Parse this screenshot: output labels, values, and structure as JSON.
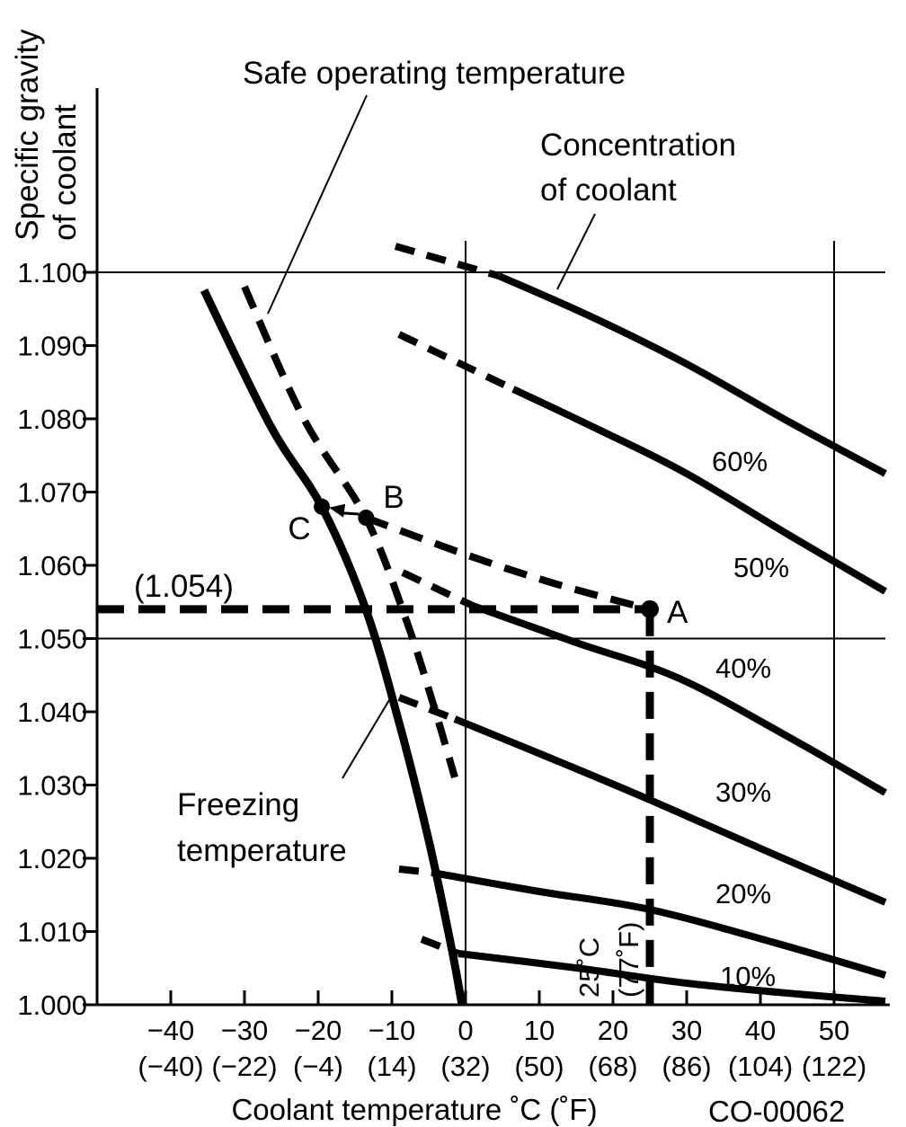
{
  "figure_code": "CO-00062",
  "titles": {
    "y_axis_line1": "Specific gravity",
    "y_axis_line2": "of coolant",
    "safe_operating": "Safe operating temperature",
    "concentration_line1": "Concentration",
    "concentration_line2": "of coolant",
    "freezing_line1": "Freezing",
    "freezing_line2": "temperature",
    "x_axis_title": "Coolant temperature ˚C (˚F)"
  },
  "example": {
    "gravity_callout": "(1.054)",
    "point_a": "A",
    "point_b": "B",
    "point_c": "C",
    "temp_label_c": "25˚C",
    "temp_label_f": "(77˚F)",
    "measured_gravity": 1.054,
    "measured_temp_c": 25
  },
  "y_axis": {
    "ticks": [
      {
        "label": "1.100",
        "value": 1.1
      },
      {
        "label": "1.090",
        "value": 1.09
      },
      {
        "label": "1.080",
        "value": 1.08
      },
      {
        "label": "1.070",
        "value": 1.07
      },
      {
        "label": "1.060",
        "value": 1.06
      },
      {
        "label": "1.050",
        "value": 1.05
      },
      {
        "label": "1.040",
        "value": 1.04
      },
      {
        "label": "1.030",
        "value": 1.03
      },
      {
        "label": "1.020",
        "value": 1.02
      },
      {
        "label": "1.010",
        "value": 1.01
      },
      {
        "label": "1.000",
        "value": 1.0
      }
    ]
  },
  "x_axis": {
    "ticks": [
      {
        "c": "−40",
        "f": "(−40)",
        "value": -40
      },
      {
        "c": "−30",
        "f": "(−22)",
        "value": -30
      },
      {
        "c": "−20",
        "f": "(−4)",
        "value": -20
      },
      {
        "c": "−10",
        "f": "(14)",
        "value": -10
      },
      {
        "c": "0",
        "f": "(32)",
        "value": 0
      },
      {
        "c": "10",
        "f": "(50)",
        "value": 10
      },
      {
        "c": "20",
        "f": "(68)",
        "value": 20
      },
      {
        "c": "30",
        "f": "(86)",
        "value": 30
      },
      {
        "c": "40",
        "f": "(104)",
        "value": 40
      },
      {
        "c": "50",
        "f": "(122)",
        "value": 50
      }
    ]
  },
  "chart_data": {
    "type": "line",
    "title": "",
    "xlabel": "Coolant temperature ˚C (˚F)",
    "ylabel": "Specific gravity of coolant",
    "x_range_c": [
      -49,
      57
    ],
    "y_range": [
      1.0,
      1.105
    ],
    "grid": "reference lines only",
    "reference_lines": {
      "horizontal_gravity": [
        1.1,
        1.05
      ],
      "vertical_temp_c": [
        0,
        50
      ]
    },
    "series": [
      {
        "label": "60%",
        "concentration_pct": 60,
        "dashed": [
          [
            -9.5,
            1.1035
          ],
          [
            4.5,
            1.0995
          ]
        ],
        "solid": [
          [
            4.5,
            1.0995
          ],
          [
            17,
            1.094
          ],
          [
            30,
            1.0875
          ],
          [
            44,
            1.0795
          ],
          [
            57,
            1.0725
          ]
        ]
      },
      {
        "label": "50%",
        "concentration_pct": 50,
        "dashed": [
          [
            -9.0,
            1.0915
          ],
          [
            6.5,
            1.084
          ]
        ],
        "solid": [
          [
            6.5,
            1.084
          ],
          [
            18,
            1.0785
          ],
          [
            30,
            1.0725
          ],
          [
            44,
            1.064
          ],
          [
            57,
            1.0565
          ]
        ]
      },
      {
        "label": "40%",
        "concentration_pct": 40,
        "dashed": [
          [
            -8.5,
            1.059
          ],
          [
            1.0,
            1.0545
          ]
        ],
        "solid": [
          [
            1.0,
            1.0545
          ],
          [
            15,
            1.0495
          ],
          [
            29,
            1.0445
          ],
          [
            44,
            1.0365
          ],
          [
            57,
            1.029
          ]
        ]
      },
      {
        "label": "30%",
        "concentration_pct": 30,
        "dashed": [
          [
            -9.0,
            1.042
          ],
          [
            -1.5,
            1.039
          ]
        ],
        "solid": [
          [
            -1.5,
            1.039
          ],
          [
            12,
            1.0335
          ],
          [
            25,
            1.028
          ],
          [
            42,
            1.0205
          ],
          [
            57,
            1.014
          ]
        ]
      },
      {
        "label": "20%",
        "concentration_pct": 20,
        "dashed": [
          [
            -9.0,
            1.0185
          ],
          [
            -4.5,
            1.018
          ]
        ],
        "solid": [
          [
            -4.5,
            1.018
          ],
          [
            10,
            1.0155
          ],
          [
            25,
            1.013
          ],
          [
            42,
            1.0085
          ],
          [
            57,
            1.004
          ]
        ]
      },
      {
        "label": "10%",
        "concentration_pct": 10,
        "dashed": [
          [
            -6.0,
            1.009
          ],
          [
            -1.0,
            1.007
          ]
        ],
        "solid": [
          [
            -1.0,
            1.007
          ],
          [
            15,
            1.005
          ],
          [
            30,
            1.003
          ],
          [
            45,
            1.0015
          ],
          [
            57,
            1.0005
          ]
        ]
      }
    ],
    "freezing_temperature_curve": [
      [
        -35.5,
        1.0975
      ],
      [
        -26.5,
        1.079
      ],
      [
        -19.5,
        1.068
      ],
      [
        -13.5,
        1.054
      ],
      [
        -9.0,
        1.0385
      ],
      [
        -5.0,
        1.0225
      ],
      [
        -2.0,
        1.008
      ],
      [
        -0.5,
        1.0
      ]
    ],
    "safe_operating_curve": [
      [
        -30.0,
        1.098
      ],
      [
        -22.0,
        1.08
      ],
      [
        -13.5,
        1.0665
      ],
      [
        -8.0,
        1.0525
      ],
      [
        -4.5,
        1.0415
      ],
      [
        -1.5,
        1.031
      ]
    ],
    "example_interpolated_curve": [
      [
        -13.5,
        1.0665
      ],
      [
        0,
        1.0615
      ],
      [
        12,
        1.0575
      ],
      [
        25,
        1.054
      ]
    ],
    "example_points": {
      "A": [
        25,
        1.054
      ],
      "B": [
        -13.5,
        1.0665
      ],
      "C": [
        -19.5,
        1.068
      ]
    }
  }
}
